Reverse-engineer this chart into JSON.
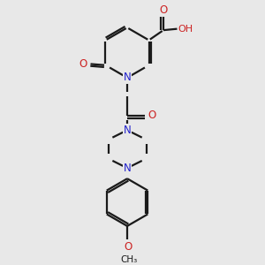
{
  "bg_color": "#e8e8e8",
  "bond_color": "#1a1a1a",
  "N_color": "#2222cc",
  "O_color": "#cc2222",
  "line_width": 1.6,
  "figsize": [
    3.0,
    3.0
  ],
  "dpi": 100,
  "xlim": [
    0,
    10
  ],
  "ylim": [
    0,
    10
  ]
}
